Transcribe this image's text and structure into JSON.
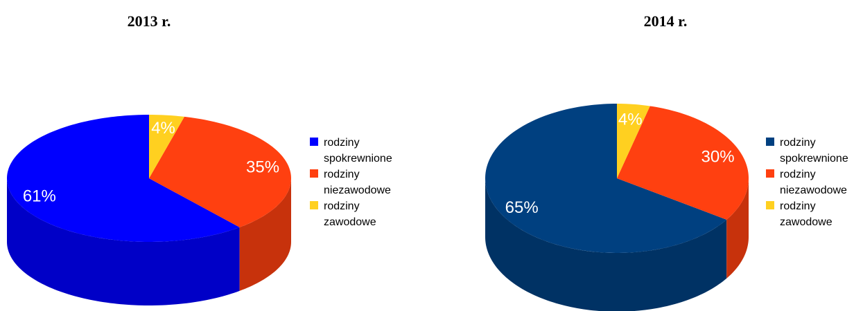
{
  "chart_data": [
    {
      "type": "pie3d",
      "title": "2013 r.",
      "categories": [
        "rodziny spokrewnione",
        "rodziny niezawodowe",
        "rodziny zawodowe"
      ],
      "values": [
        61,
        35,
        4
      ],
      "value_labels": [
        "61%",
        "35%",
        "4%"
      ],
      "colors": [
        "#0000ff",
        "#ff4010",
        "#ffd020"
      ]
    },
    {
      "type": "pie3d",
      "title": "2014 r.",
      "categories": [
        "rodziny spokrewnione",
        "rodziny niezawodowe",
        "rodziny zawodowe"
      ],
      "values": [
        65,
        30,
        4
      ],
      "value_labels": [
        "65%",
        "30%",
        "4%"
      ],
      "colors": [
        "#004080",
        "#ff4010",
        "#ffd020"
      ]
    }
  ]
}
